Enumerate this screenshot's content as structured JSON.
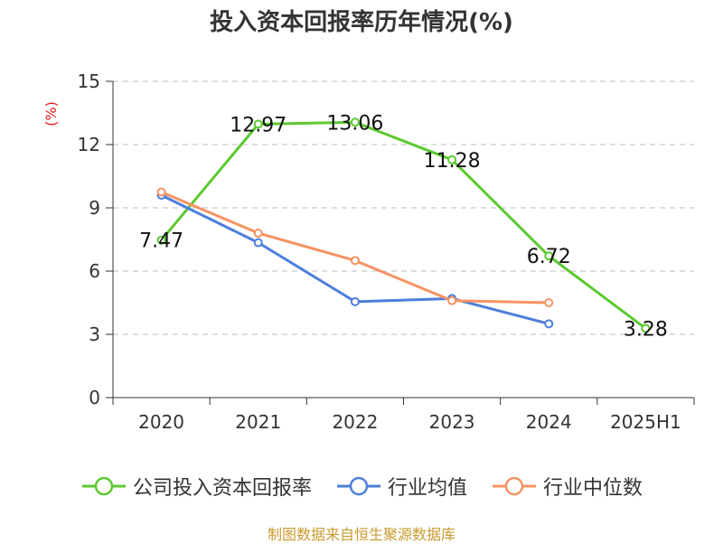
{
  "source_note": "制图数据来自恒生聚源数据库",
  "chart_data": {
    "type": "line",
    "title": "投入资本回报率历年情况(%)",
    "ylabel": "(%)",
    "xlabel": "",
    "categories": [
      "2020",
      "2021",
      "2022",
      "2023",
      "2024",
      "2025H1"
    ],
    "ylim": [
      0,
      15
    ],
    "yticks": [
      "0",
      "3",
      "6",
      "9",
      "12",
      "15"
    ],
    "grid": true,
    "legend_position": "bottom",
    "series": [
      {
        "name": "公司投入资本回报率",
        "color": "#5cc92f",
        "values": [
          7.47,
          12.97,
          13.06,
          11.28,
          6.72,
          3.28
        ],
        "labels": [
          "7.47",
          "12.97",
          "13.06",
          "11.28",
          "6.72",
          "3.28"
        ]
      },
      {
        "name": "行业均值",
        "color": "#4d7fdb",
        "values": [
          9.6,
          7.35,
          4.55,
          4.7,
          3.5,
          null
        ]
      },
      {
        "name": "行业中位数",
        "color": "#f79362",
        "values": [
          9.75,
          7.8,
          6.5,
          4.6,
          4.5,
          null
        ]
      }
    ]
  }
}
